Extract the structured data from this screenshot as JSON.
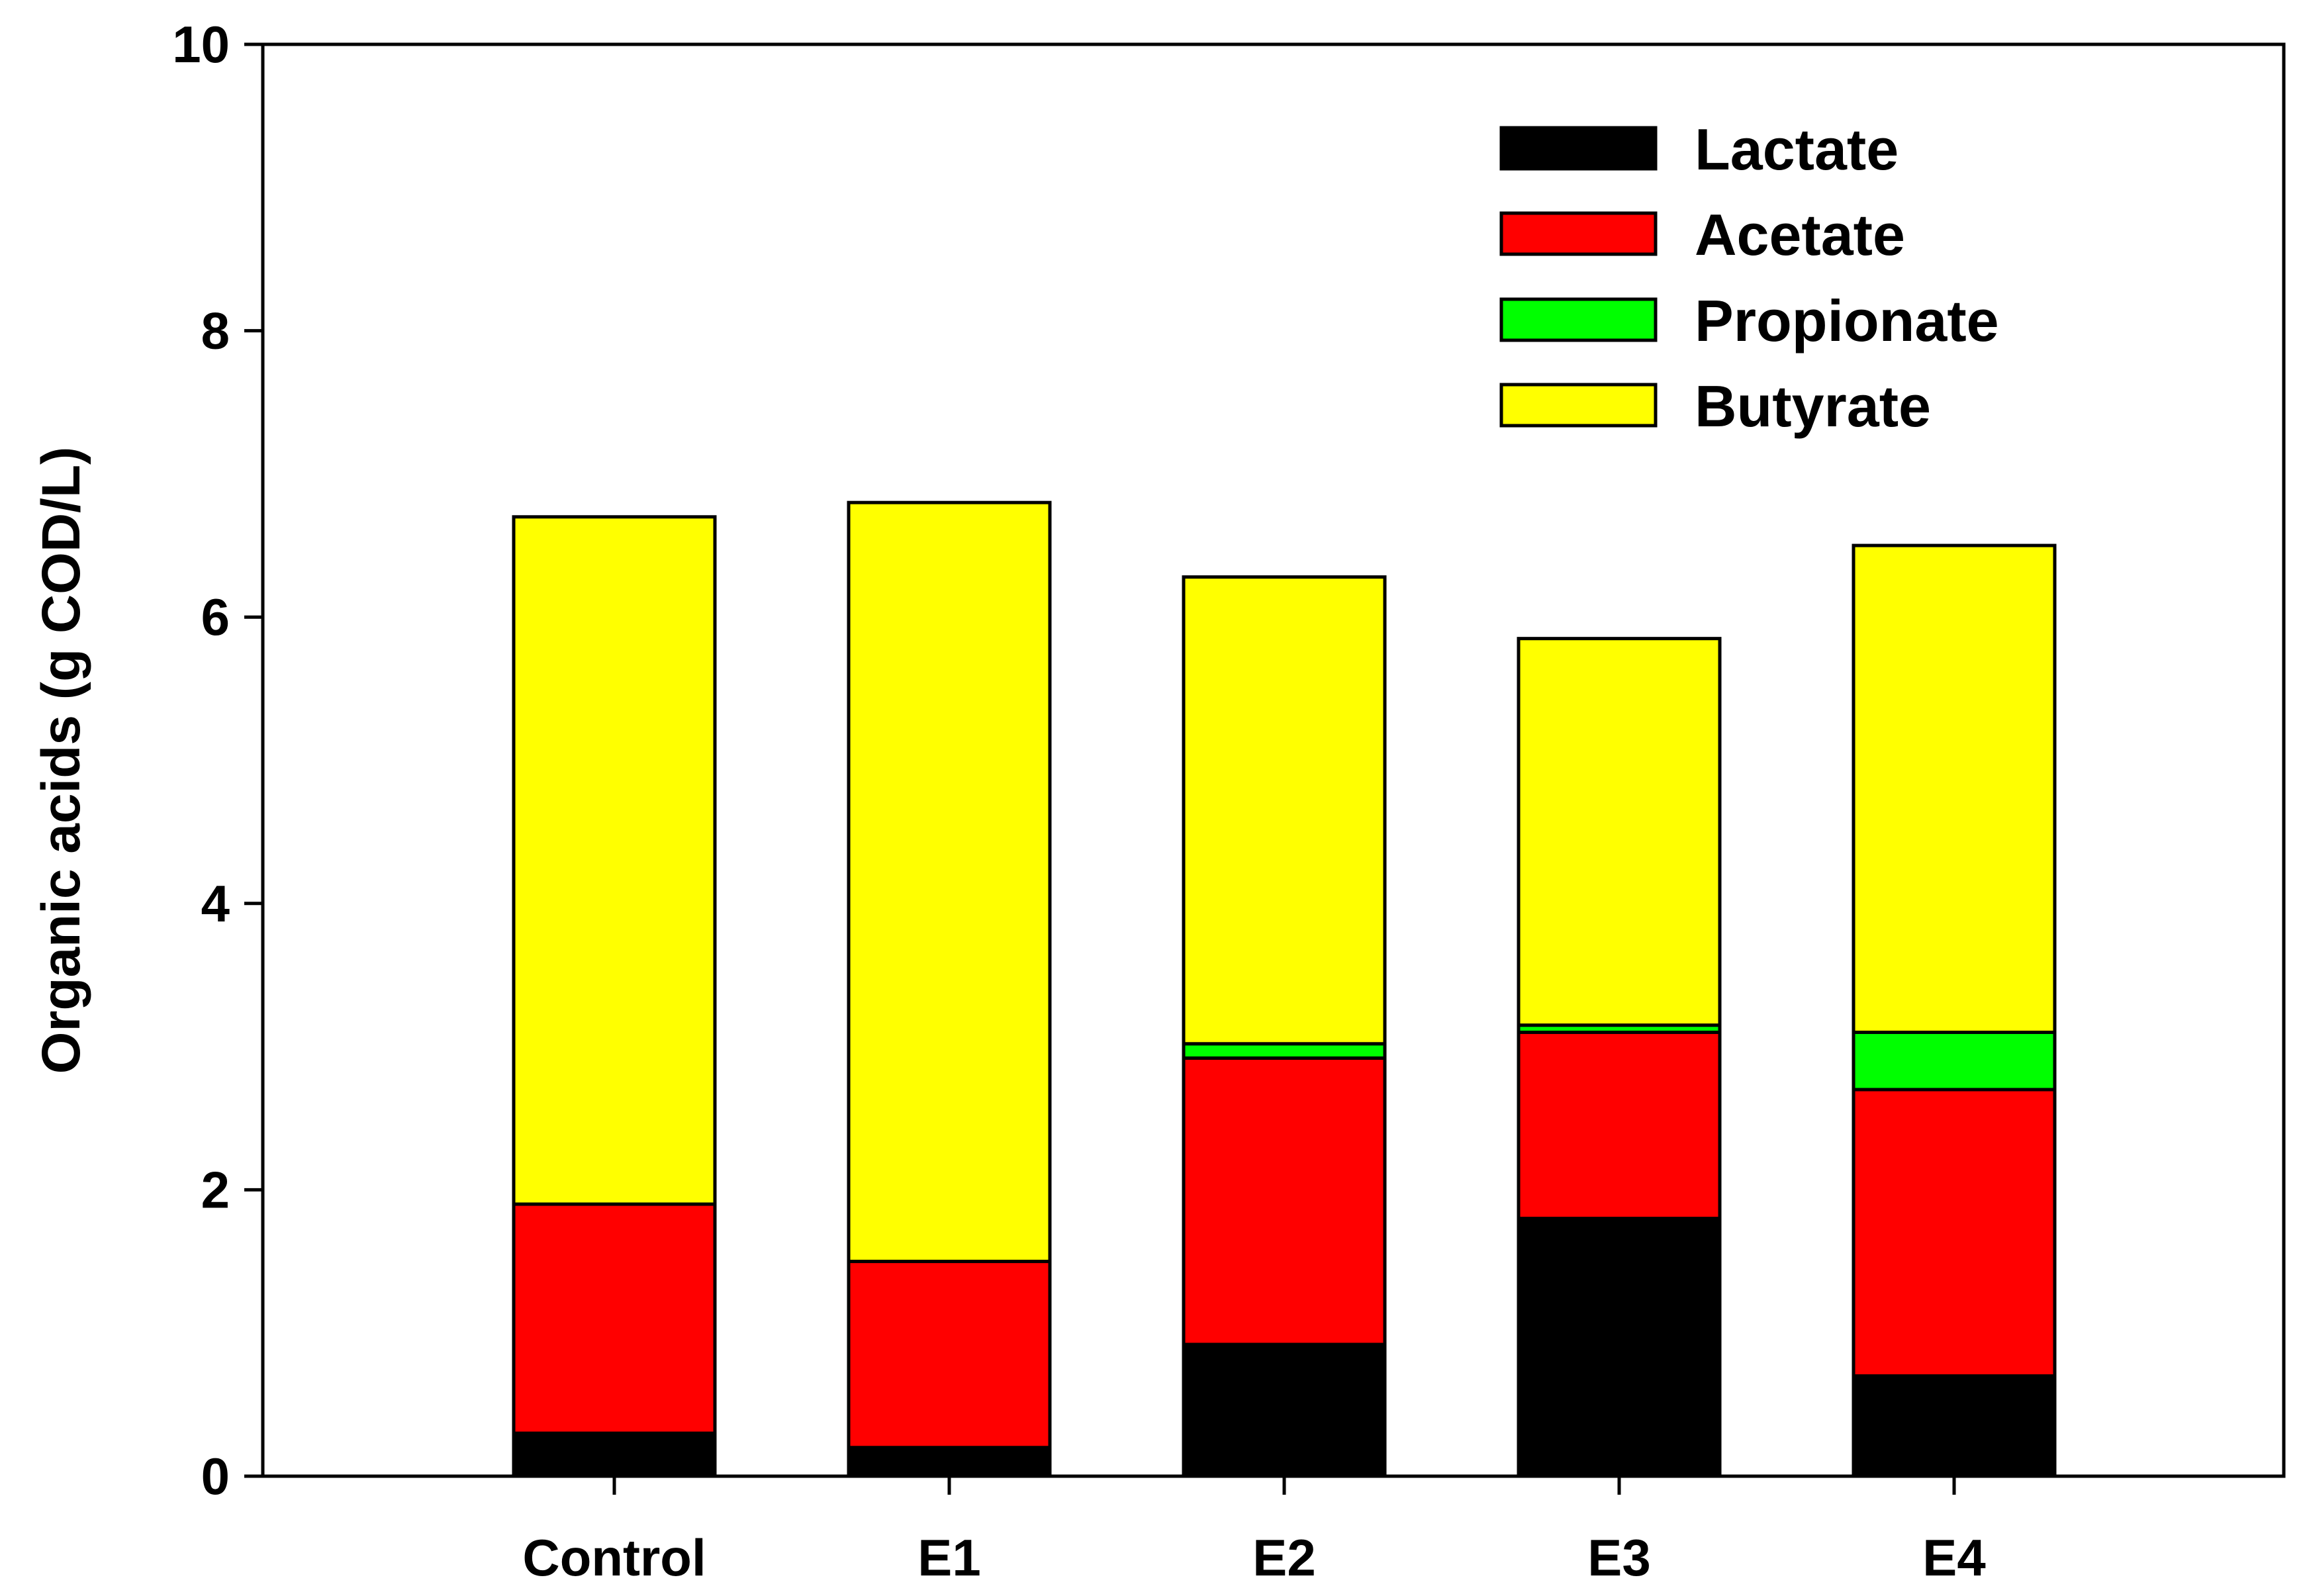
{
  "chart_data": {
    "type": "bar",
    "stacked": true,
    "title": "",
    "xlabel": "",
    "ylabel": "Organic acids (g COD/L)",
    "ylim": [
      0,
      10
    ],
    "yticks": [
      0,
      2,
      4,
      6,
      8,
      10
    ],
    "ytick_labels": [
      "0",
      "2",
      "4",
      "6",
      "8",
      "10"
    ],
    "grid": false,
    "legend_position": "top-right",
    "categories": [
      "Control",
      "E1",
      "E2",
      "E3",
      "E4"
    ],
    "series": [
      {
        "name": "Lactate",
        "color": "#000000",
        "values": [
          0.3,
          0.2,
          0.92,
          1.8,
          0.7
        ]
      },
      {
        "name": "Acetate",
        "color": "#ff0000",
        "values": [
          1.6,
          1.3,
          2.0,
          1.3,
          2.0
        ]
      },
      {
        "name": "Propionate",
        "color": "#00ff00",
        "values": [
          0.0,
          0.0,
          0.1,
          0.05,
          0.4
        ]
      },
      {
        "name": "Butyrate",
        "color": "#ffff00",
        "values": [
          4.8,
          5.3,
          3.26,
          2.7,
          3.4
        ]
      }
    ]
  }
}
